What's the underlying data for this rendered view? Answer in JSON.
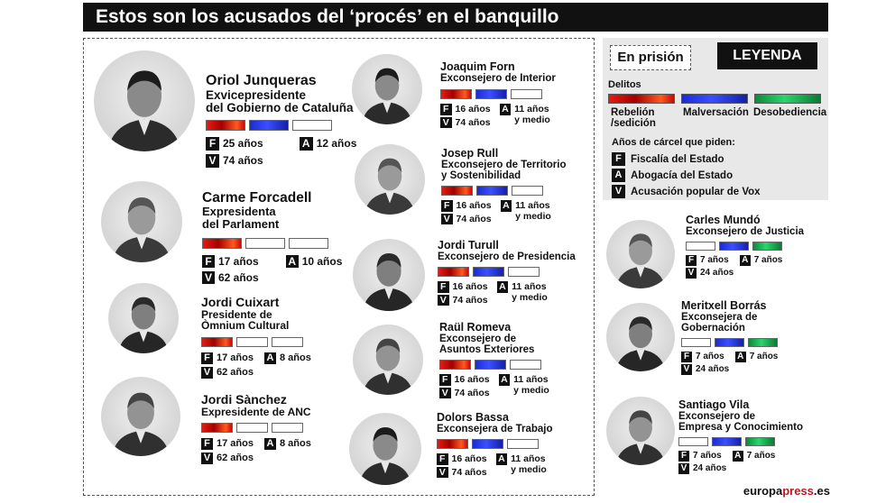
{
  "title": "Estos son los acusados del ‘procés’ en el banquillo",
  "legend": {
    "in_prison_label": "En prisión",
    "legend_title": "LEYENDA",
    "crimes_label": "Delitos",
    "crimes": [
      {
        "label_line1": "Rebelión",
        "label_line2": "/sedición",
        "color": "#d51212"
      },
      {
        "label_line1": "Malversación",
        "label_line2": "",
        "color": "#2a3bd8"
      },
      {
        "label_line1": "Desobediencia",
        "label_line2": "",
        "color": "#16a04a"
      }
    ],
    "years_label": "Años de cárcel que piden:",
    "accusers": [
      {
        "letter": "F",
        "label": "Fiscalía del Estado"
      },
      {
        "letter": "A",
        "label": "Abogacía del Estado"
      },
      {
        "letter": "V",
        "label": "Acusación popular de Vox"
      }
    ]
  },
  "defendants": [
    {
      "name": "Oriol Junqueras",
      "role_lines": [
        "Exvicepresidente",
        "del Gobierno de Cataluña"
      ],
      "crimes": [
        "rebelion",
        "malversacion",
        "none"
      ],
      "F": "25 años",
      "A": "12 años",
      "V": "74 años",
      "in_prison": true
    },
    {
      "name": "Carme Forcadell",
      "role_lines": [
        "Expresidenta",
        "del Parlament"
      ],
      "crimes": [
        "rebelion",
        "none",
        "none"
      ],
      "F": "17 años",
      "A": "10 años",
      "V": "62 años",
      "in_prison": true
    },
    {
      "name": "Jordi Cuixart",
      "role_lines": [
        "Presidente de",
        "Òmnium Cultural"
      ],
      "crimes": [
        "rebelion",
        "none",
        "none"
      ],
      "F": "17 años",
      "A": "8 años",
      "V": "62 años",
      "in_prison": true
    },
    {
      "name": "Jordi Sànchez",
      "role_lines": [
        "Expresidente de ANC"
      ],
      "crimes": [
        "rebelion",
        "none",
        "none"
      ],
      "F": "17 años",
      "A": "8 años",
      "V": "62 años",
      "in_prison": true
    },
    {
      "name": "Joaquim Forn",
      "role_lines": [
        "Exconsejero de Interior"
      ],
      "crimes": [
        "rebelion",
        "malversacion",
        "none"
      ],
      "F": "16 años",
      "A": "11 años y medio",
      "A_line1": "11 años",
      "A_line2": "y medio",
      "V": "74 años",
      "in_prison": true
    },
    {
      "name": "Josep Rull",
      "role_lines": [
        "Exconsejero de Territorio",
        "y Sostenibilidad"
      ],
      "crimes": [
        "rebelion",
        "malversacion",
        "none"
      ],
      "F": "16 años",
      "A_line1": "11 años",
      "A_line2": "y medio",
      "V": "74 años",
      "in_prison": true
    },
    {
      "name": "Jordi Turull",
      "role_lines": [
        "Exconsejero de Presidencia"
      ],
      "crimes": [
        "rebelion",
        "malversacion",
        "none"
      ],
      "F": "16 años",
      "A_line1": "11 años",
      "A_line2": "y medio",
      "V": "74 años",
      "in_prison": true
    },
    {
      "name": "Raül Romeva",
      "role_lines": [
        "Exconsejero de",
        "Asuntos Exteriores"
      ],
      "crimes": [
        "rebelion",
        "malversacion",
        "none"
      ],
      "F": "16 años",
      "A_line1": "11 años",
      "A_line2": "y medio",
      "V": "74 años",
      "in_prison": true
    },
    {
      "name": "Dolors Bassa",
      "role_lines": [
        "Exconsejera de Trabajo"
      ],
      "crimes": [
        "rebelion",
        "malversacion",
        "none"
      ],
      "F": "16 años",
      "A_line1": "11 años",
      "A_line2": "y medio",
      "V": "74 años",
      "in_prison": true
    },
    {
      "name": "Carles Mundó",
      "role_lines": [
        "Exconsejero de Justicia"
      ],
      "crimes": [
        "none",
        "malversacion",
        "desobediencia"
      ],
      "F": "7 años",
      "A": "7 años",
      "V": "24 años",
      "in_prison": false
    },
    {
      "name": "Meritxell Borrás",
      "role_lines": [
        "Exconsejera de",
        "Gobernación"
      ],
      "crimes": [
        "none",
        "malversacion",
        "desobediencia"
      ],
      "F": "7 años",
      "A": "7 años",
      "V": "24 años",
      "in_prison": false
    },
    {
      "name": "Santiago Vila",
      "role_lines": [
        "Exconsejero de",
        "Empresa y Conocimiento"
      ],
      "crimes": [
        "none",
        "malversacion",
        "desobediencia"
      ],
      "F": "7 años",
      "A": "7 años",
      "V": "24 años",
      "in_prison": false
    }
  ],
  "source": {
    "part1": "europa",
    "part2": "press",
    "part3": ".es"
  }
}
